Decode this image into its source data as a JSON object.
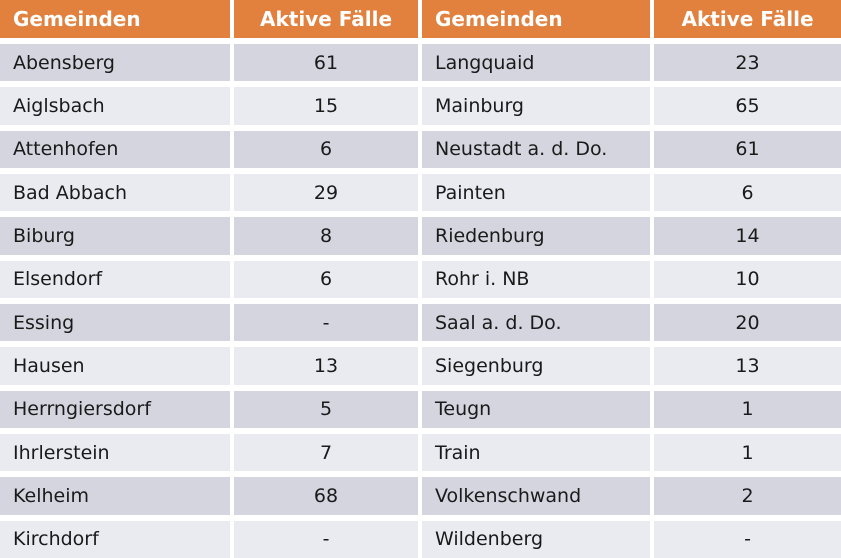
{
  "chart_data": {
    "type": "table",
    "columns": [
      "Gemeinden",
      "Aktive Fälle",
      "Gemeinden",
      "Aktive Fälle"
    ],
    "rows": [
      {
        "left_name": "Abensberg",
        "left_value": "61",
        "right_name": "Langquaid",
        "right_value": "23"
      },
      {
        "left_name": "Aiglsbach",
        "left_value": "15",
        "right_name": "Mainburg",
        "right_value": "65"
      },
      {
        "left_name": "Attenhofen",
        "left_value": "6",
        "right_name": "Neustadt a. d. Do.",
        "right_value": "61"
      },
      {
        "left_name": "Bad Abbach",
        "left_value": "29",
        "right_name": "Painten",
        "right_value": "6"
      },
      {
        "left_name": "Biburg",
        "left_value": "8",
        "right_name": "Riedenburg",
        "right_value": "14"
      },
      {
        "left_name": "Elsendorf",
        "left_value": "6",
        "right_name": "Rohr i. NB",
        "right_value": "10"
      },
      {
        "left_name": "Essing",
        "left_value": "-",
        "right_name": "Saal a. d. Do.",
        "right_value": "20"
      },
      {
        "left_name": "Hausen",
        "left_value": "13",
        "right_name": "Siegenburg",
        "right_value": "13"
      },
      {
        "left_name": "Herrngiersdorf",
        "left_value": "5",
        "right_name": "Teugn",
        "right_value": "1"
      },
      {
        "left_name": "Ihrlerstein",
        "left_value": "7",
        "right_name": "Train",
        "right_value": "1"
      },
      {
        "left_name": "Kelheim",
        "left_value": "68",
        "right_name": "Volkenschwand",
        "right_value": "2"
      },
      {
        "left_name": "Kirchdorf",
        "left_value": "-",
        "right_name": "Wildenberg",
        "right_value": "-"
      }
    ]
  },
  "colors": {
    "header_bg": "#e2813e",
    "header_text": "#ffffff",
    "row_dark": "#d4d5df",
    "row_light": "#eaebf1",
    "cell_text": "#1a1a1a"
  }
}
